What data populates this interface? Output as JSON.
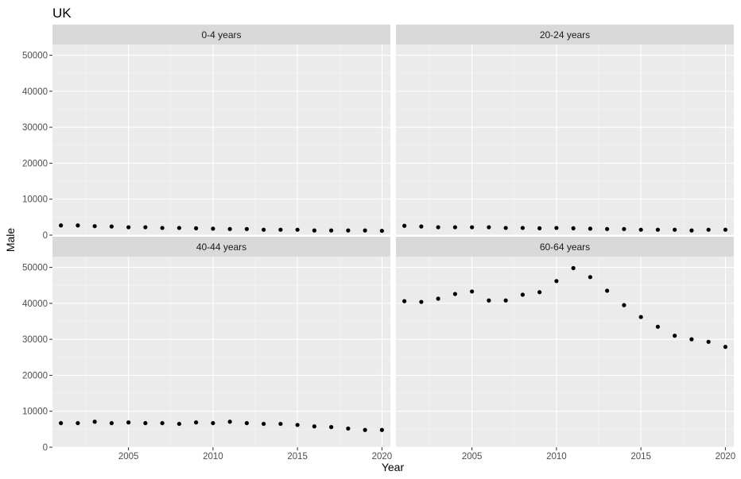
{
  "chart_data": {
    "type": "scatter",
    "title": "UK",
    "xlabel": "Year",
    "ylabel": "Male",
    "xlim": [
      2000.5,
      2020.5
    ],
    "ylim": [
      0,
      53000
    ],
    "x_ticks": [
      2005,
      2010,
      2015,
      2020
    ],
    "y_ticks": [
      0,
      10000,
      20000,
      30000,
      40000,
      50000
    ],
    "grid": true,
    "point_color": "#000000",
    "panel_background": "#ebebeb",
    "strip_background": "#d9d9d9",
    "x": [
      2001,
      2002,
      2003,
      2004,
      2005,
      2006,
      2007,
      2008,
      2009,
      2010,
      2011,
      2012,
      2013,
      2014,
      2015,
      2016,
      2017,
      2018,
      2019,
      2020
    ],
    "facets": [
      {
        "label": "0-4 years",
        "values": [
          2700,
          2700,
          2500,
          2400,
          2200,
          2200,
          2000,
          2000,
          1900,
          1800,
          1700,
          1700,
          1500,
          1500,
          1500,
          1300,
          1300,
          1300,
          1300,
          1200
        ]
      },
      {
        "label": "20-24 years",
        "values": [
          2600,
          2400,
          2200,
          2200,
          2200,
          2200,
          2000,
          2000,
          1900,
          2000,
          1900,
          1800,
          1700,
          1700,
          1500,
          1500,
          1500,
          1300,
          1500,
          1500
        ]
      },
      {
        "label": "40-44 years",
        "values": [
          6700,
          6700,
          7100,
          6700,
          6900,
          6700,
          6700,
          6500,
          6900,
          6700,
          7100,
          6700,
          6500,
          6500,
          6200,
          5800,
          5600,
          5200,
          4800,
          4800
        ]
      },
      {
        "label": "60-64 years",
        "values": [
          40600,
          40400,
          41300,
          42600,
          43300,
          40800,
          40800,
          42400,
          43100,
          46200,
          49800,
          47300,
          43500,
          39500,
          36200,
          33500,
          31000,
          30000,
          29300,
          27900
        ]
      }
    ]
  }
}
